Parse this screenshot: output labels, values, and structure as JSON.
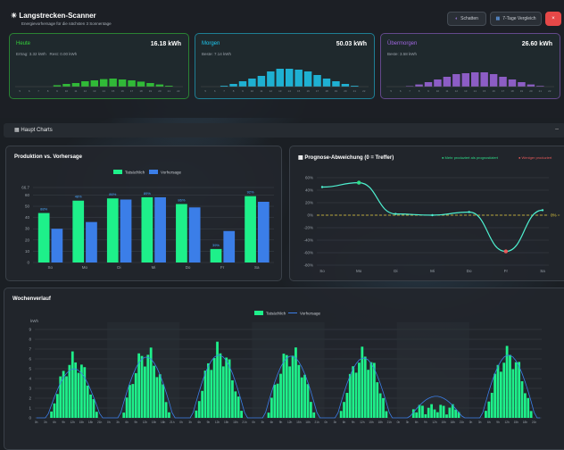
{
  "header": {
    "icon": "solar-panel-icon",
    "title": "Langstrecken-Scanner",
    "subtitle": "Energievorhersage für die nächsten 3 Sonnentage",
    "btn_shadow": "Schatten",
    "btn_week": "7-Tage Vergleich"
  },
  "days": [
    {
      "name": "Heute",
      "value": "16.18 kWh",
      "meta1": "Ertrag: 3.32 kWh",
      "meta2": "Rest: 0.00 kWh",
      "color": "#34d23a",
      "hours": [
        0,
        0,
        0,
        0,
        0.08,
        0.15,
        0.2,
        0.3,
        0.35,
        0.42,
        0.45,
        0.4,
        0.35,
        0.28,
        0.2,
        0.12,
        0.05,
        0
      ]
    },
    {
      "name": "Morgen",
      "value": "50.03 kWh",
      "meta1": "Beste: 7.14 kWh",
      "meta2": "",
      "color": "#1ec8f0",
      "hours": [
        0,
        0,
        0.05,
        0.15,
        0.3,
        0.45,
        0.6,
        0.85,
        1,
        1,
        0.95,
        0.85,
        0.65,
        0.45,
        0.3,
        0.15,
        0.05,
        0
      ]
    },
    {
      "name": "Übermorgen",
      "value": "26.60 kWh",
      "meta1": "Beste: 3.58 kWh",
      "meta2": "",
      "color": "#a066e0",
      "hours": [
        0,
        0,
        0.03,
        0.12,
        0.25,
        0.4,
        0.55,
        0.7,
        0.75,
        0.8,
        0.8,
        0.7,
        0.55,
        0.4,
        0.25,
        0.12,
        0.04,
        0
      ]
    }
  ],
  "sections": {
    "main_charts": "Haupt Charts"
  },
  "production": {
    "title": "Produktion vs. Vorhersage",
    "legend_actual": "Tatsächlich",
    "legend_forecast": "Vorhersage"
  },
  "forecast_dev": {
    "title": "Prognose-Abweichung (0 = Treffer)",
    "legend_more": "Mehr produziert als prognostiziert",
    "legend_less": "Weniger produziert"
  },
  "weekly": {
    "title": "Wochenverlauf",
    "legend_actual": "Tatsächlich",
    "legend_forecast": "Vorhersage",
    "ylabel": "kWh"
  },
  "chart_data": [
    {
      "type": "bar",
      "categories": [
        "So",
        "Mo",
        "Di",
        "Mi",
        "Do",
        "Fr",
        "Sa"
      ],
      "series": [
        {
          "name": "Tatsächlich",
          "values": [
            44,
            55,
            57,
            58,
            52,
            12,
            59
          ]
        },
        {
          "name": "Vorhersage",
          "values": [
            30,
            36,
            56,
            58,
            49,
            28,
            54
          ]
        }
      ],
      "data_labels": [
        "88%",
        "48%",
        "86%",
        "89%",
        "86%",
        "39%",
        "92%"
      ],
      "ylim": [
        0,
        66.7
      ],
      "yticks": [
        0,
        10,
        20,
        30,
        40,
        50,
        60,
        66.7
      ],
      "color_actual": "#1ef08a",
      "color_forecast": "#3b7ee8"
    },
    {
      "type": "line",
      "categories": [
        "So",
        "Mo",
        "Di",
        "Mi",
        "Do",
        "Fr",
        "Sa"
      ],
      "values": [
        45,
        52,
        2,
        0,
        5,
        -58,
        8
      ],
      "ylim": [
        -80,
        60
      ],
      "yticks": [
        -80,
        -60,
        -40,
        -20,
        0,
        20,
        40,
        60
      ],
      "zero_label": "0% =",
      "color": "#4ef0d0"
    },
    {
      "type": "bar",
      "ylim": [
        0,
        9
      ],
      "yticks": [
        0,
        1,
        2,
        3,
        4,
        5,
        6,
        7,
        8,
        9
      ],
      "x_labels": [
        "0h",
        "3h",
        "6h",
        "9h",
        "12h",
        "15h",
        "18h",
        "21h"
      ],
      "color_actual": "#1ef08a",
      "color_forecast": "#3b7ee8"
    }
  ]
}
